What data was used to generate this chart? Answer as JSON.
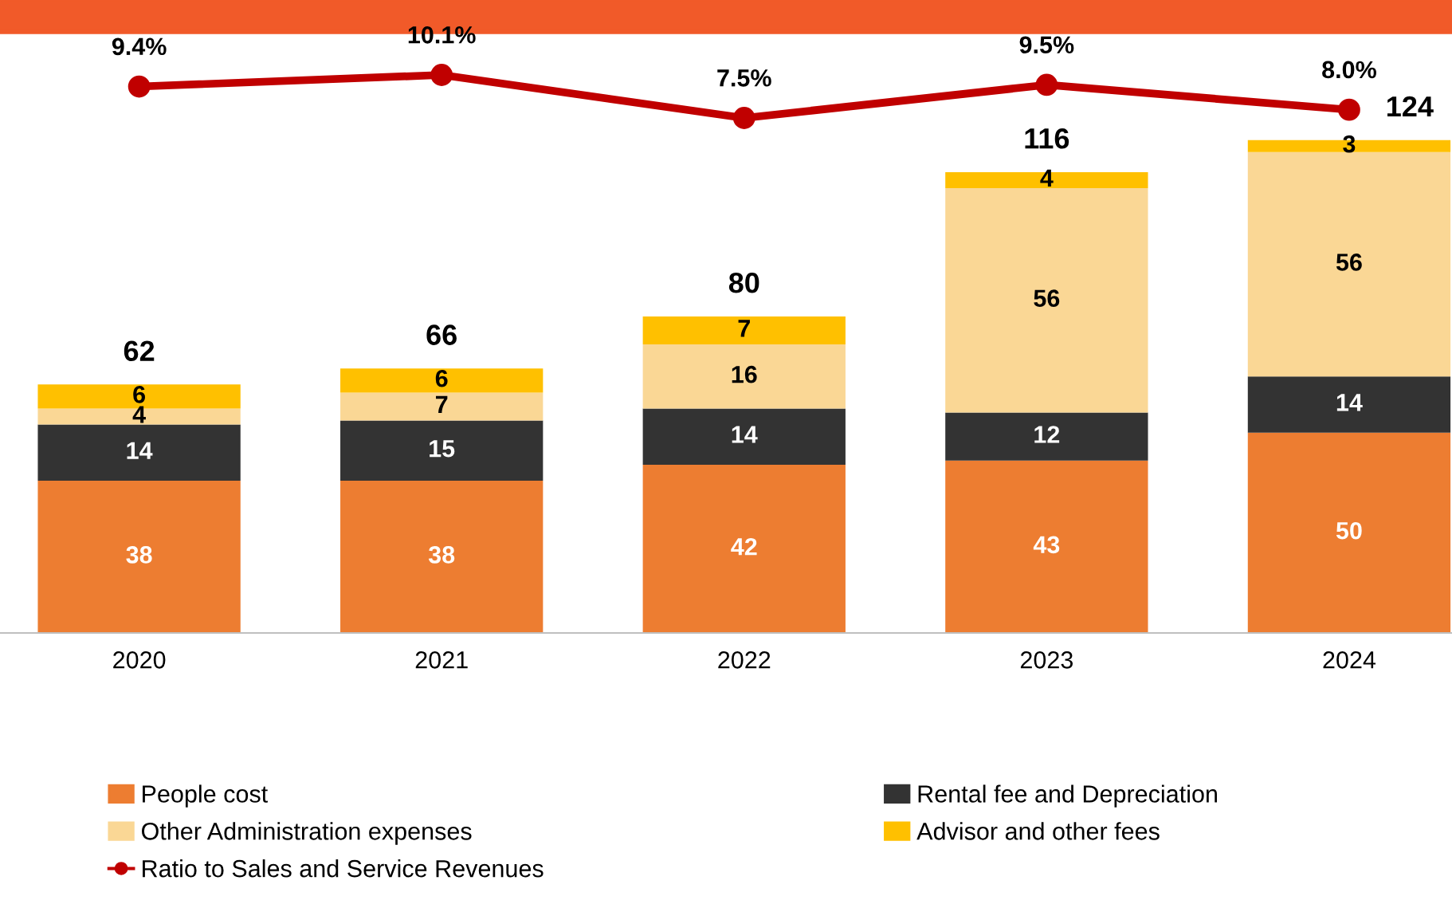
{
  "chart_data": {
    "type": "bar",
    "stacked": true,
    "categories": [
      "2020",
      "2021",
      "2022",
      "2023",
      "2024"
    ],
    "series": [
      {
        "name": "People cost",
        "color": "#ed7d31",
        "values": [
          38,
          38,
          42,
          43,
          50
        ]
      },
      {
        "name": "Rental fee and Depreciation",
        "color": "#333333",
        "values": [
          14,
          15,
          14,
          12,
          14
        ]
      },
      {
        "name": "Other Administration expenses",
        "color": "#fad795",
        "values": [
          4,
          7,
          16,
          56,
          56
        ]
      },
      {
        "name": "Advisor and other fees",
        "color": "#ffc000",
        "values": [
          6,
          6,
          7,
          4,
          3
        ]
      },
      {
        "name": "Ratio to Sales and Service Revenues",
        "type": "line",
        "axis": "y2",
        "color": "#c00000",
        "marker": "circle",
        "line_style": "solid",
        "values": [
          9.4,
          10.1,
          7.5,
          9.5,
          8.0
        ],
        "value_labels": [
          "9.4%",
          "10.1%",
          "7.5%",
          "9.5%",
          "8.0%"
        ]
      }
    ],
    "totals": [
      "62",
      "66",
      "80",
      "116",
      "124"
    ],
    "data_labels": true,
    "ylim": [
      0,
      150
    ],
    "y2lim": [
      -23.6,
      12.7
    ],
    "tick_labels": "x",
    "grid": false,
    "legend": "bottom"
  }
}
